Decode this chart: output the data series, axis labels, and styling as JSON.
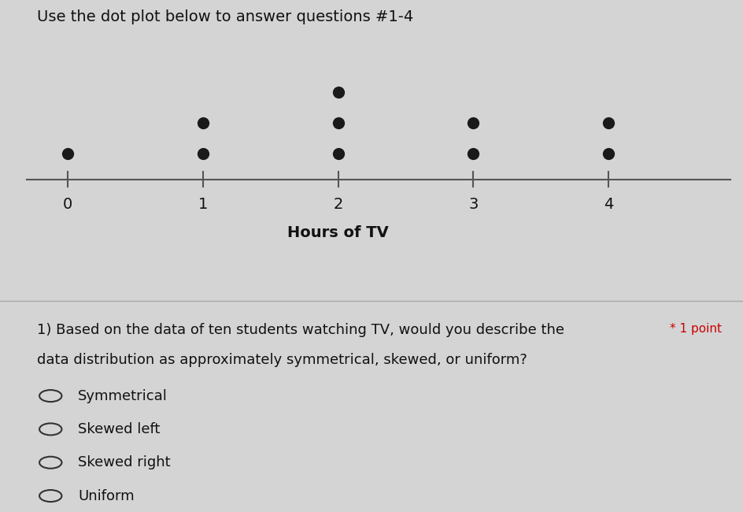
{
  "title": "Use the dot plot below to answer questions #1-4",
  "xlabel": "Hours of TV",
  "dot_counts": {
    "0": 1,
    "1": 2,
    "2": 3,
    "3": 2,
    "4": 2
  },
  "x_ticks": [
    0,
    1,
    2,
    3,
    4
  ],
  "dot_color": "#1a1a1a",
  "line_color": "#555555",
  "bg_color_top": "#d4d4d4",
  "bg_color_bottom": "#f0f0f0",
  "question_text": "1) Based on the data of ten students watching TV, would you describe the",
  "question_text2": "data distribution as approximately symmetrical, skewed, or uniform?",
  "point_label": "* 1 point",
  "options": [
    "Symmetrical",
    "Skewed left",
    "Skewed right",
    "Uniform"
  ],
  "title_fontsize": 14,
  "label_fontsize": 13,
  "question_fontsize": 13,
  "option_fontsize": 13
}
